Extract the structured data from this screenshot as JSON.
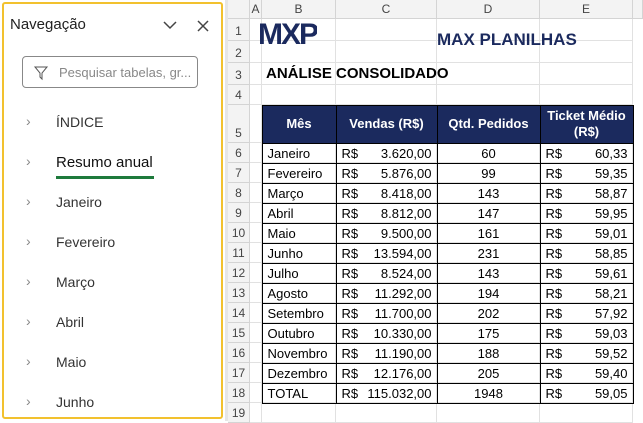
{
  "nav": {
    "title": "Navegação",
    "search_placeholder": "Pesquisar tabelas, gr...",
    "items": [
      "ÍNDICE",
      "Resumo anual",
      "Janeiro",
      "Fevereiro",
      "Março",
      "Abril",
      "Maio",
      "Junho"
    ]
  },
  "sheet": {
    "columns": [
      "A",
      "B",
      "C",
      "D",
      "E"
    ],
    "rows": [
      1,
      2,
      3,
      4,
      5,
      6,
      7,
      8,
      9,
      10,
      11,
      12,
      13,
      14,
      15,
      16,
      17,
      18,
      19
    ],
    "logo": "MXP",
    "brand": "MAX PLANILHAS",
    "title": "ANÁLISE CONSOLIDADO",
    "table": {
      "currency_symbol": "R$",
      "header": [
        "Mês",
        "Vendas (R$)",
        "Qtd. Pedidos",
        "Ticket Médio (R$)"
      ],
      "rows": [
        [
          "Janeiro",
          "3.620,00",
          "60",
          "60,33"
        ],
        [
          "Fevereiro",
          "5.876,00",
          "99",
          "59,35"
        ],
        [
          "Março",
          "8.418,00",
          "143",
          "58,87"
        ],
        [
          "Abril",
          "8.812,00",
          "147",
          "59,95"
        ],
        [
          "Maio",
          "9.500,00",
          "161",
          "59,01"
        ],
        [
          "Junho",
          "13.594,00",
          "231",
          "58,85"
        ],
        [
          "Julho",
          "8.524,00",
          "143",
          "59,61"
        ],
        [
          "Agosto",
          "11.292,00",
          "194",
          "58,21"
        ],
        [
          "Setembro",
          "11.700,00",
          "202",
          "57,92"
        ],
        [
          "Outubro",
          "10.330,00",
          "175",
          "59,03"
        ],
        [
          "Novembro",
          "11.190,00",
          "188",
          "59,52"
        ],
        [
          "Dezembro",
          "12.176,00",
          "205",
          "59,40"
        ],
        [
          "TOTAL",
          "115.032,00",
          "1948",
          "59,05"
        ]
      ]
    }
  }
}
